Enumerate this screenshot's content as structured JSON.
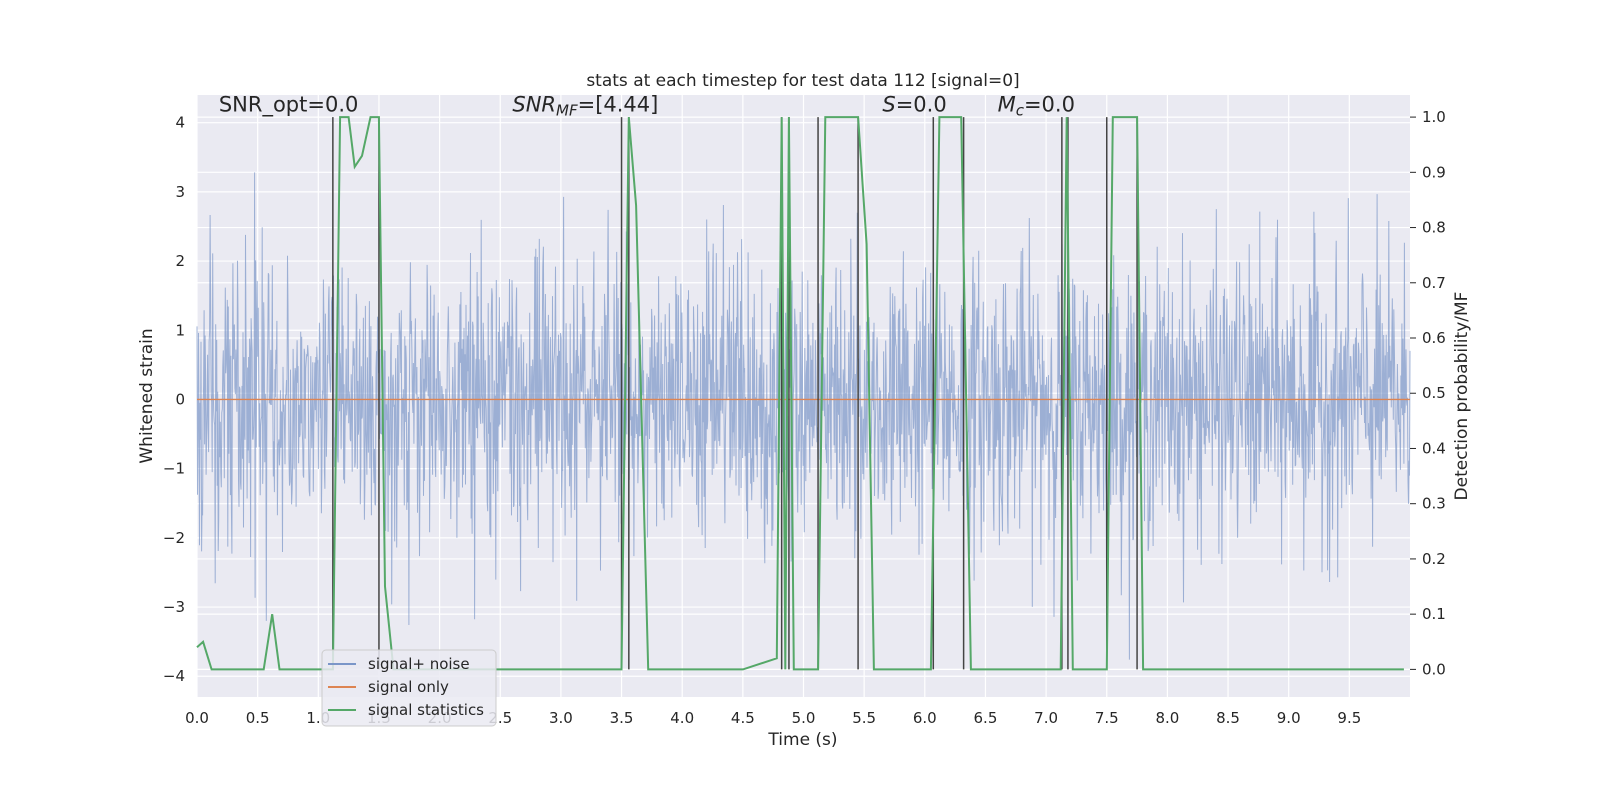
{
  "chart_data": {
    "type": "line",
    "title": "stats at each timestep for test data 112 [signal=0]",
    "xlabel": "Time (s)",
    "ylabel_left": "Whitened strain",
    "ylabel_right": "Detection probability/MF",
    "xlim": [
      0.0,
      10.0
    ],
    "ylim_left": [
      -4.3,
      4.4
    ],
    "ylim_right": [
      -0.05,
      1.04
    ],
    "xticks": [
      0.0,
      0.5,
      1.0,
      1.5,
      2.0,
      2.5,
      3.0,
      3.5,
      4.0,
      4.5,
      5.0,
      5.5,
      6.0,
      6.5,
      7.0,
      7.5,
      8.0,
      8.5,
      9.0,
      9.5
    ],
    "xtick_labels": [
      "0.0",
      "0.5",
      "1.0",
      "1.5",
      "2.0",
      "2.5",
      "3.0",
      "3.5",
      "4.0",
      "4.5",
      "5.0",
      "5.5",
      "6.0",
      "6.5",
      "7.0",
      "7.5",
      "8.0",
      "8.5",
      "9.0",
      "9.5"
    ],
    "yticks_left": [
      4,
      3,
      2,
      1,
      0,
      -1,
      -2,
      -3,
      -4
    ],
    "ytick_labels_left": [
      "4",
      "3",
      "2",
      "1",
      "0",
      "−1",
      "−2",
      "−3",
      "−4"
    ],
    "yticks_right": [
      1.0,
      0.9,
      0.8,
      0.7,
      0.6,
      0.5,
      0.4,
      0.3,
      0.2,
      0.1,
      0.0
    ],
    "ytick_labels_right": [
      "1.0",
      "0.9",
      "0.8",
      "0.7",
      "0.6",
      "0.5",
      "0.4",
      "0.3",
      "0.2",
      "0.1",
      "0.0"
    ],
    "grid": true,
    "legend_position": "lower-left",
    "annotations": [
      {
        "text": "SNR_opt=0.0",
        "italic_prefix": "",
        "x": 0.18,
        "y": 4.15
      },
      {
        "text": "SNR_MF=[4.44]",
        "italic_prefix": "SNR",
        "sub": "MF",
        "rest": "=[4.44]",
        "x": 2.6,
        "y": 4.15
      },
      {
        "text": "S=0.0",
        "italic_prefix": "S",
        "rest": "=0.0",
        "x": 5.65,
        "y": 4.15
      },
      {
        "text": "M_c=0.0",
        "italic_prefix": "M",
        "sub": "c",
        "rest": "=0.0",
        "x": 6.6,
        "y": 4.15
      }
    ],
    "series": [
      {
        "name": "signal+ noise",
        "color": "#7b96c8",
        "axis": "left",
        "kind": "noise",
        "noise_sigma": 1.0
      },
      {
        "name": "signal only",
        "color": "#dd8452",
        "axis": "left",
        "kind": "flat",
        "value": 0.0
      },
      {
        "name": "signal statistics",
        "color": "#55a868",
        "axis": "right",
        "x": [
          0.0,
          0.05,
          0.12,
          0.2,
          0.4,
          0.55,
          0.62,
          0.68,
          0.8,
          1.0,
          1.12,
          1.18,
          1.25,
          1.3,
          1.36,
          1.43,
          1.5,
          1.55,
          1.62,
          1.8,
          2.0,
          2.5,
          3.0,
          3.5,
          3.56,
          3.62,
          3.72,
          3.8,
          3.98,
          4.05,
          4.2,
          4.5,
          4.78,
          4.82,
          4.85,
          4.88,
          4.92,
          5.0,
          5.12,
          5.18,
          5.3,
          5.45,
          5.52,
          5.58,
          5.8,
          6.05,
          6.12,
          6.3,
          6.38,
          6.5,
          7.12,
          7.17,
          7.22,
          7.5,
          7.55,
          7.62,
          7.75,
          7.8,
          8.0,
          9.0,
          9.95
        ],
        "values": [
          0.04,
          0.05,
          0.0,
          0.0,
          0.0,
          0.0,
          0.1,
          0.0,
          0.0,
          0.0,
          0.0,
          1.0,
          1.0,
          0.91,
          0.93,
          1.0,
          1.0,
          0.15,
          0.0,
          0.0,
          0.0,
          0.0,
          0.0,
          0.0,
          1.0,
          0.84,
          0.0,
          0.0,
          0.0,
          0.0,
          0.0,
          0.0,
          0.02,
          1.0,
          0.0,
          1.0,
          0.0,
          0.0,
          0.0,
          1.0,
          1.0,
          1.0,
          0.77,
          0.0,
          0.0,
          0.0,
          1.0,
          1.0,
          0.0,
          0.0,
          0.0,
          1.0,
          0.0,
          0.0,
          1.0,
          1.0,
          1.0,
          0.0,
          0.0,
          0.0,
          0.0
        ]
      }
    ],
    "event_lines": [
      1.12,
      1.5,
      3.5,
      3.56,
      4.82,
      4.88,
      5.12,
      5.45,
      6.07,
      6.32,
      7.13,
      7.18,
      7.5,
      7.75
    ],
    "event_line_color": "#444444",
    "noise_color": "#7b96c8",
    "legend": [
      {
        "label": "signal+ noise",
        "color": "#7b96c8"
      },
      {
        "label": "signal only",
        "color": "#dd8452"
      },
      {
        "label": "signal statistics",
        "color": "#55a868"
      }
    ]
  }
}
